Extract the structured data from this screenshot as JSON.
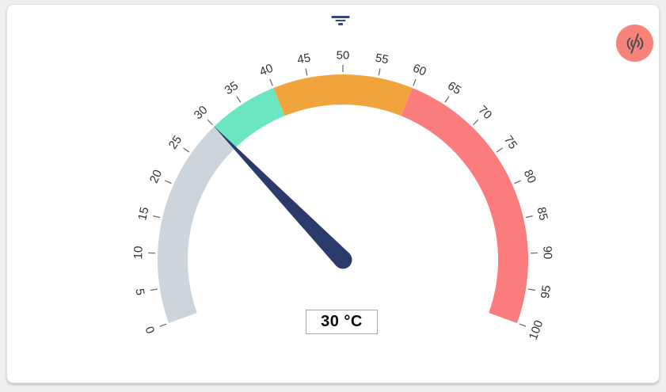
{
  "card": {
    "background": "#ffffff"
  },
  "toolbar": {
    "filter_icon": "filter-icon",
    "filter_color": "#33487e"
  },
  "live_button": {
    "icon": "broadcast-off-icon",
    "background": "#f8837b",
    "icon_color": "#4d4d4d"
  },
  "chart_data": {
    "type": "gauge",
    "title": "",
    "min": 0,
    "max": 100,
    "value": 30,
    "unit": "°C",
    "value_label": "30 °C",
    "start_angle": 200,
    "end_angle": -20,
    "tick_interval": 5,
    "tick_labels": [
      0,
      5,
      10,
      15,
      20,
      25,
      30,
      35,
      40,
      45,
      50,
      55,
      60,
      65,
      70,
      75,
      80,
      85,
      90,
      95,
      100
    ],
    "segments": [
      {
        "from": 0,
        "to": 30,
        "color": "#ccd5db"
      },
      {
        "from": 30,
        "to": 40,
        "color": "#6ce5c3"
      },
      {
        "from": 40,
        "to": 60,
        "color": "#f2a43c"
      },
      {
        "from": 60,
        "to": 100,
        "color": "#fb7c7c"
      }
    ],
    "needle_color": "#2a3a6b",
    "tick_color": "#6e6e6e",
    "label_color": "#333333",
    "legend": "off",
    "grid": "off"
  }
}
